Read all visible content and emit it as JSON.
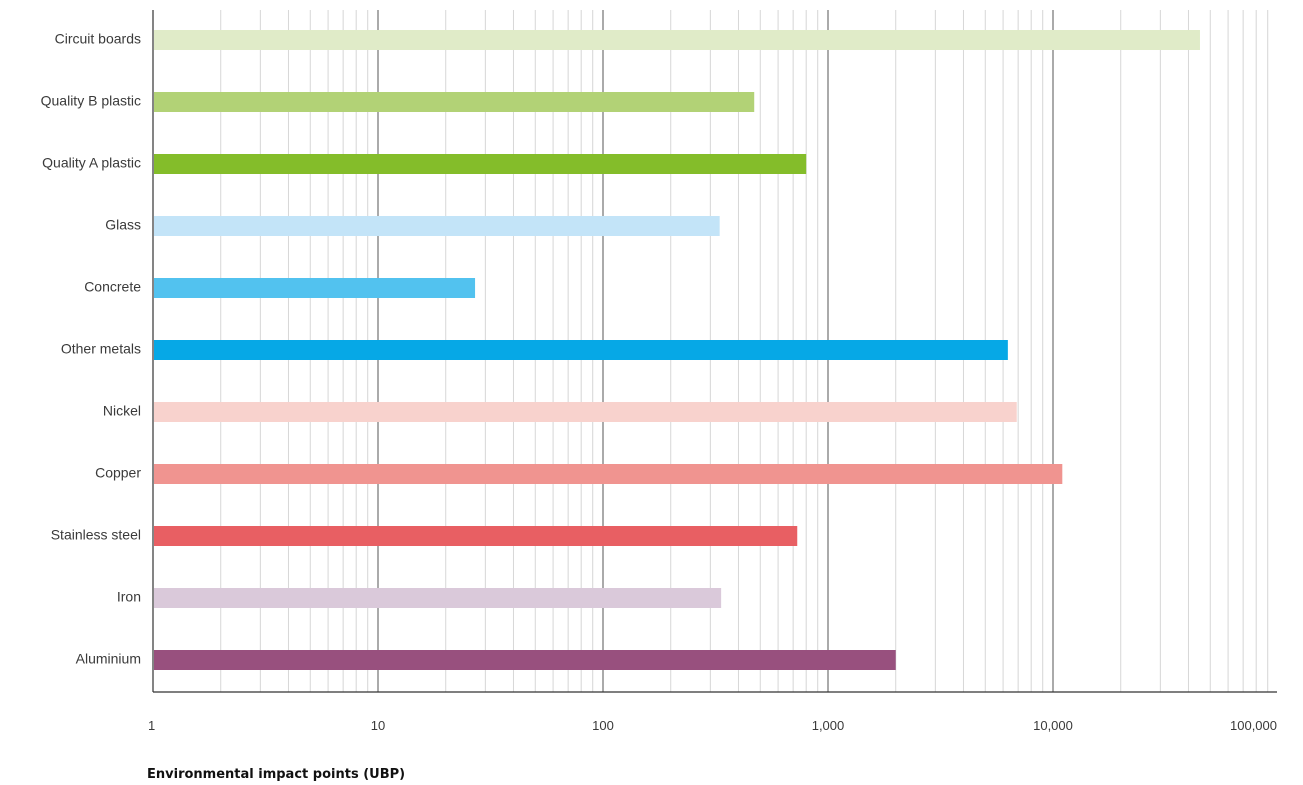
{
  "chart_data": {
    "type": "bar",
    "orientation": "horizontal",
    "categories": [
      "Circuit boards",
      "Quality B plastic",
      "Quality A plastic",
      "Glass",
      "Concrete",
      "Other metals",
      "Nickel",
      "Copper",
      "Stainless steel",
      "Iron",
      "Aluminium"
    ],
    "values": [
      45000,
      470,
      800,
      330,
      27,
      6300,
      6900,
      11000,
      730,
      335,
      2000
    ],
    "colors": [
      "#e0ebc8",
      "#b2d276",
      "#84bd2a",
      "#c3e4f8",
      "#52c2ef",
      "#06a8e6",
      "#f8d2cd",
      "#f09490",
      "#e85f63",
      "#dac9da",
      "#98507e"
    ],
    "xlabel": "Environmental impact points (UBP)",
    "ylabel": "",
    "title": "",
    "xscale": "log",
    "xlim": [
      1,
      150000
    ],
    "xticks": [
      1,
      10,
      100,
      1000,
      10000,
      100000
    ],
    "xtick_labels": [
      "1",
      "10",
      "100",
      "1,000",
      "10,000",
      "100,000"
    ],
    "grid": true,
    "legend": "none"
  }
}
